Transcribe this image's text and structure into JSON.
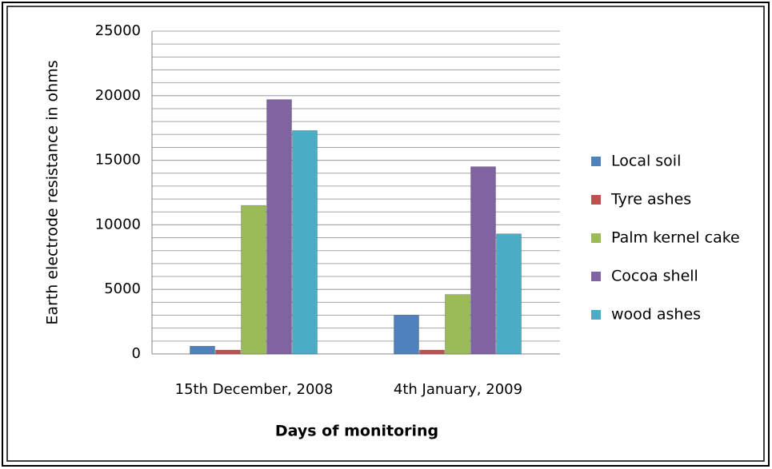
{
  "chart_data": {
    "type": "bar",
    "x_label": "Days of monitoring",
    "y_label": "Earth electrode resistance in ohms",
    "categories": [
      "15th December, 2008",
      "4th January, 2009"
    ],
    "series": [
      {
        "name": "Local soil",
        "color": "#4f81bd",
        "values": [
          600,
          3000
        ]
      },
      {
        "name": "Tyre ashes",
        "color": "#c0504d",
        "values": [
          300,
          300
        ]
      },
      {
        "name": "Palm kernel cake",
        "color": "#9bbb59",
        "values": [
          11500,
          4600
        ]
      },
      {
        "name": "Cocoa shell",
        "color": "#8064a2",
        "values": [
          19700,
          14500
        ]
      },
      {
        "name": "wood ashes",
        "color": "#4bacc6",
        "values": [
          17300,
          9300
        ]
      }
    ],
    "ylim": [
      0,
      25000
    ],
    "yticks": [
      0,
      5000,
      10000,
      15000,
      20000,
      25000
    ],
    "grid": true,
    "minor_grid_step": 1000,
    "legend": "right"
  }
}
